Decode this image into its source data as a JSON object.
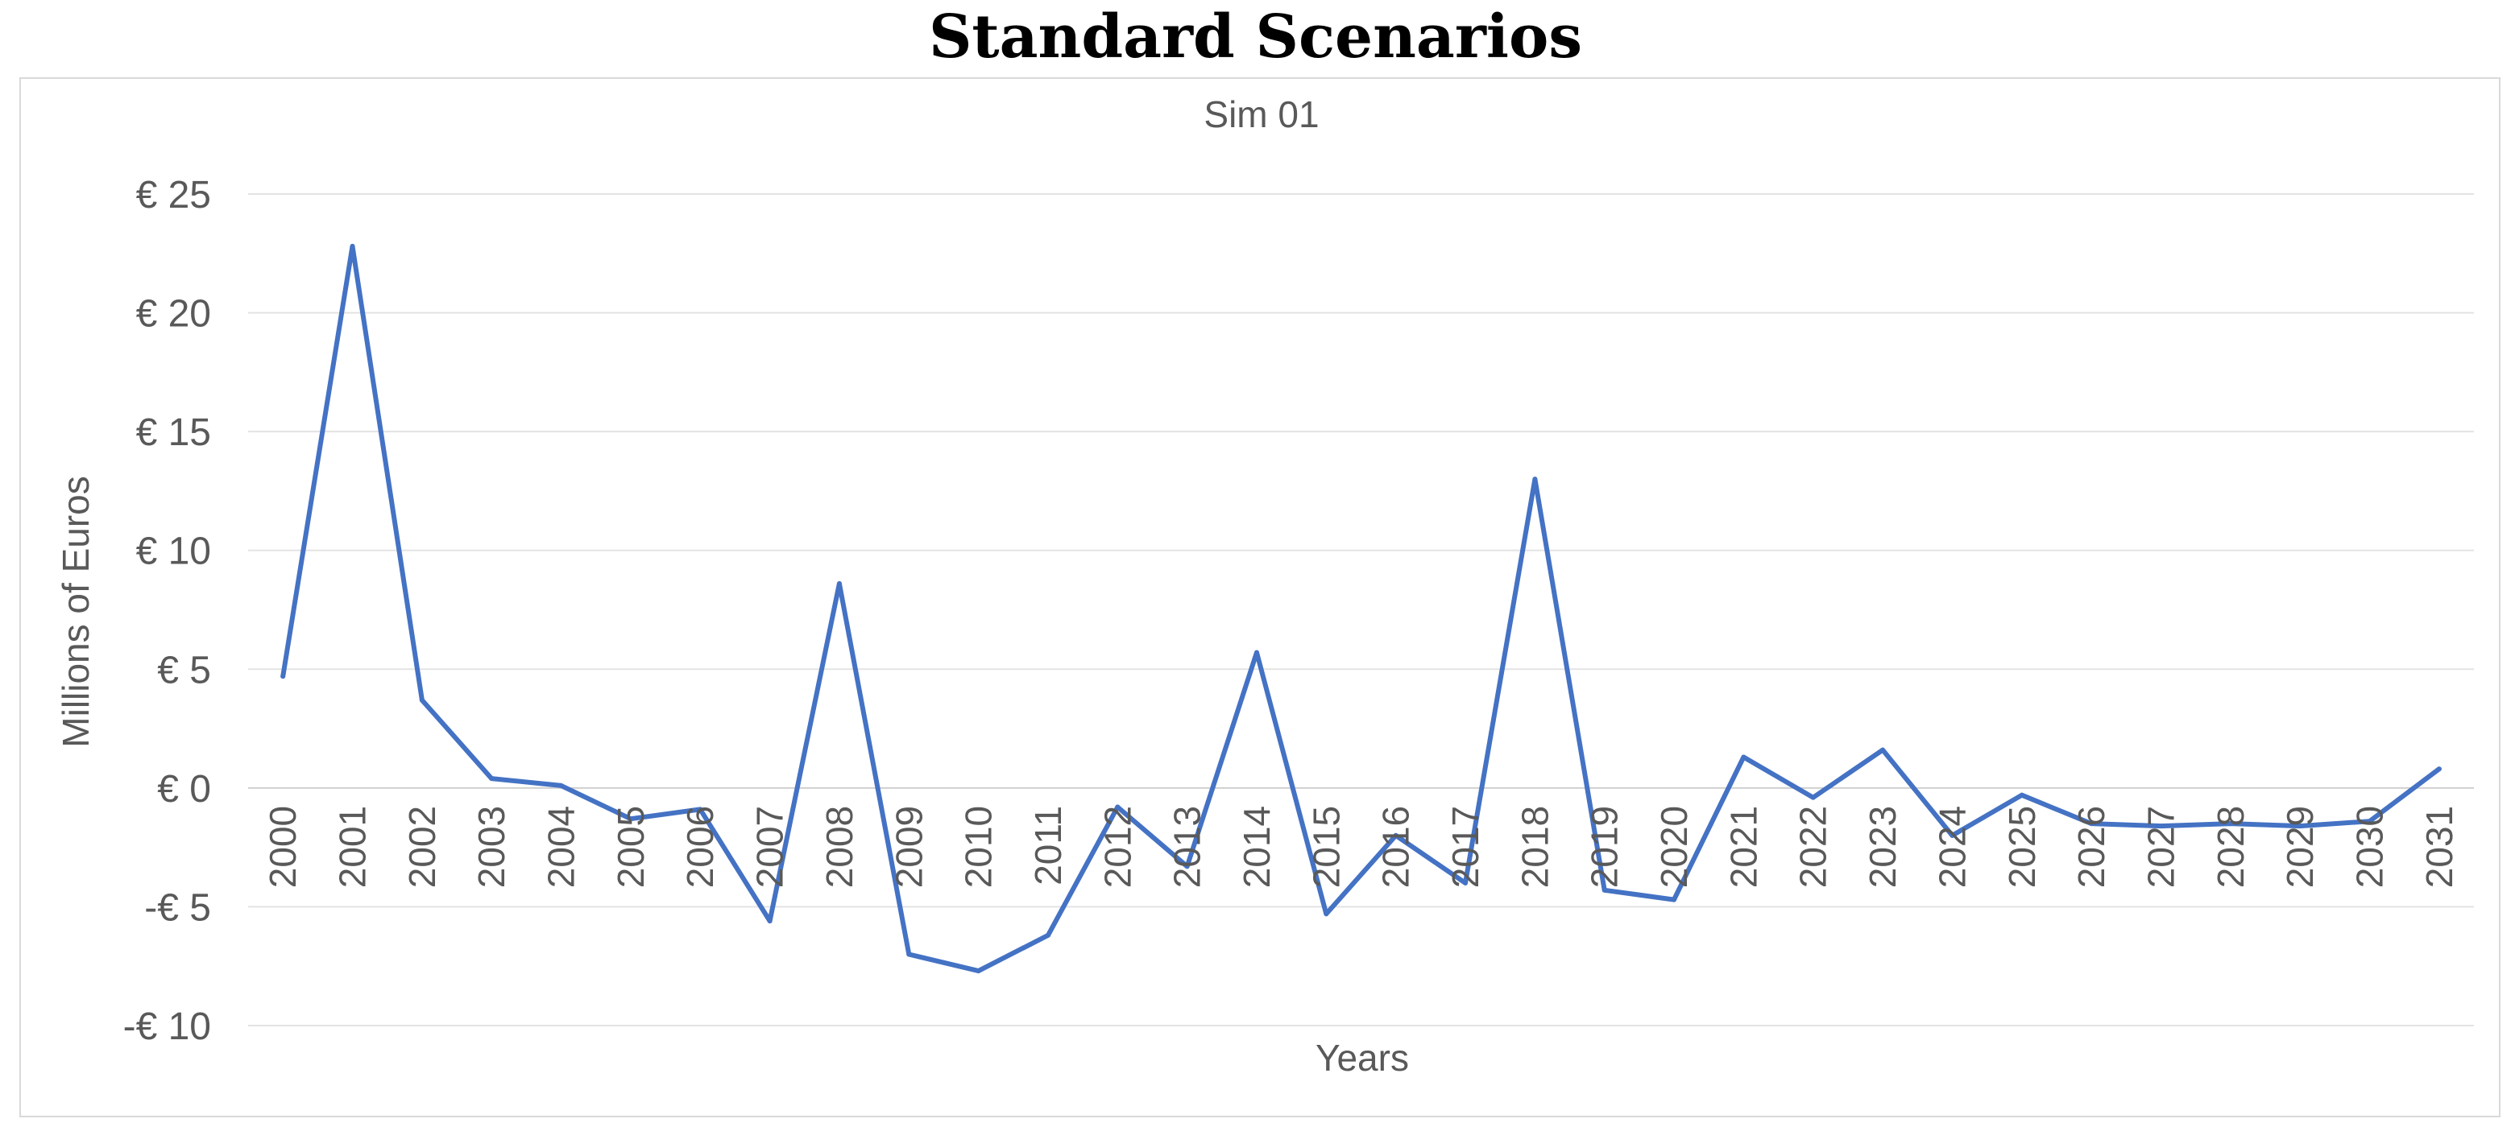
{
  "page_title": "Standard Scenarios",
  "chart_data": {
    "type": "line",
    "title": "Sim 01",
    "xlabel": "Years",
    "ylabel": "Millions of Euros",
    "ylim": [
      -10,
      25
    ],
    "yticks": [
      {
        "value": 25,
        "label": "€ 25"
      },
      {
        "value": 20,
        "label": "€ 20"
      },
      {
        "value": 15,
        "label": "€ 15"
      },
      {
        "value": 10,
        "label": "€ 10"
      },
      {
        "value": 5,
        "label": "€ 5"
      },
      {
        "value": 0,
        "label": "€ 0"
      },
      {
        "value": -5,
        "label": "-€ 5"
      },
      {
        "value": -10,
        "label": "-€ 10"
      }
    ],
    "categories": [
      "2000",
      "2001",
      "2002",
      "2003",
      "2004",
      "2005",
      "2006",
      "2007",
      "2008",
      "2009",
      "2010",
      "2011",
      "2012",
      "2013",
      "2014",
      "2015",
      "2016",
      "2017",
      "2018",
      "2019",
      "2020",
      "2021",
      "2022",
      "2023",
      "2024",
      "2025",
      "2026",
      "2027",
      "2028",
      "2029",
      "2030",
      "2031"
    ],
    "series": [
      {
        "values": [
          4.7,
          22.8,
          3.7,
          0.4,
          0.1,
          -1.3,
          -0.9,
          -5.6,
          8.6,
          -7.0,
          -7.7,
          -6.2,
          -0.8,
          -3.3,
          5.7,
          -5.3,
          -2.0,
          -4.0,
          13.0,
          -4.3,
          -4.7,
          1.3,
          -0.4,
          1.6,
          -2.0,
          -0.3,
          -1.5,
          -1.6,
          -1.5,
          -1.6,
          -1.4,
          0.8
        ],
        "color": "#4472c4"
      }
    ],
    "grid": true,
    "legend": "none"
  }
}
